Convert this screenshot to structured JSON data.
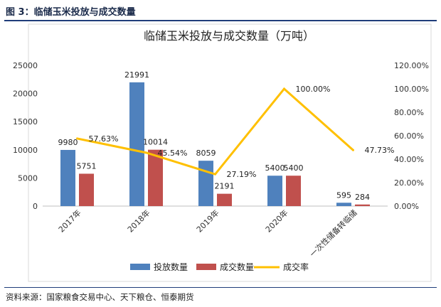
{
  "figure_label": "图 3：临储玉米投放与成交数量",
  "source_note": "资料来源：国家粮食交易中心、天下粮仓、恒泰期货",
  "chart_data": {
    "type": "bar",
    "title": "临储玉米投放与成交数量（万吨）",
    "categories": [
      "2017年",
      "2018年",
      "2019年",
      "2020年",
      "一次性储备转临储"
    ],
    "series": [
      {
        "name": "投放数量",
        "type": "bar",
        "axis": "left",
        "color": "#4f81bd",
        "values": [
          9980,
          21991,
          8059,
          5400,
          595
        ]
      },
      {
        "name": "成交数量",
        "type": "bar",
        "axis": "left",
        "color": "#c0504d",
        "values": [
          5751,
          10014,
          2191,
          5400,
          284
        ]
      },
      {
        "name": "成交率",
        "type": "line",
        "axis": "right",
        "color": "#ffc000",
        "values": [
          57.63,
          45.54,
          27.19,
          100.0,
          47.73
        ]
      }
    ],
    "data_labels": {
      "bars_a": [
        "9980",
        "21991",
        "8059",
        "5400",
        "595"
      ],
      "bars_b": [
        "5751",
        "10014",
        "2191",
        "5400",
        "284"
      ],
      "line": [
        "57.63%",
        "45.54%",
        "27.19%",
        "100.00%",
        "47.73%"
      ]
    },
    "y_left": {
      "min": 0,
      "max": 25000,
      "step": 5000,
      "ticks": [
        "0",
        "5000",
        "10000",
        "15000",
        "20000",
        "25000"
      ]
    },
    "y_right": {
      "min": 0,
      "max": 120,
      "step": 20,
      "ticks": [
        "0.00%",
        "20.00%",
        "40.00%",
        "60.00%",
        "80.00%",
        "100.00%",
        "120.00%"
      ]
    },
    "grid": false,
    "legend_position": "bottom"
  }
}
